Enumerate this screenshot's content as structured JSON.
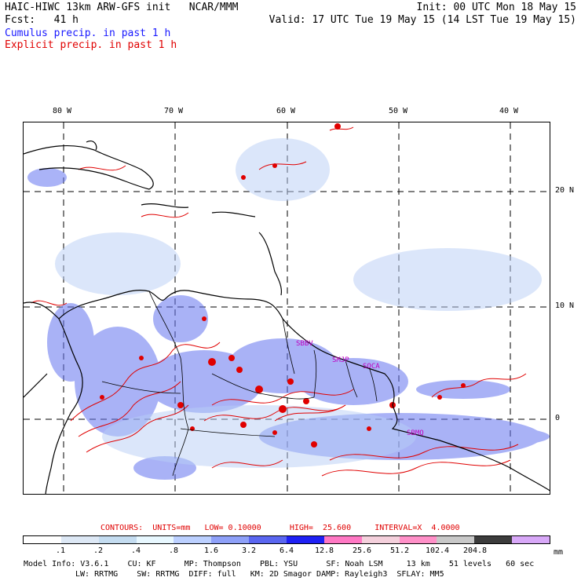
{
  "header": {
    "line1_left": "HAIC-HIWC 13km ARW-GFS init   NCAR/MMM",
    "line1_right": "Init: 00 UTC Mon 18 May 15",
    "line2_left": "Fcst:   41 h",
    "line2_right": "Valid: 17 UTC Tue 19 May 15 (14 LST Tue 19 May 15)",
    "line3": "Cumulus precip. in past 1 h",
    "line4": "Explicit precip. in past 1 h"
  },
  "map": {
    "longitude_labels": [
      "80 W",
      "70 W",
      "60 W",
      "50 W",
      "40 W"
    ],
    "latitude_labels": [
      "20 N",
      "10 N",
      "0"
    ],
    "station_labels": [
      "SBBV",
      "SMJP",
      "SOCA",
      "SBMQ"
    ],
    "colors": {
      "land": "#000000",
      "grid": "#000000",
      "cumulus": "#4a5ae8",
      "explicit": "#e00000",
      "station": "#c000c0"
    }
  },
  "contours_info": {
    "text": "CONTOURS:  UNITS=mm   LOW= 0.10000      HIGH=  25.600     INTERVAL=X  4.0000"
  },
  "colorbar": {
    "colors": [
      "#ffffff",
      "#dde8f5",
      "#c4dcf0",
      "#e8f8ff",
      "#bcd0ff",
      "#8ea0f8",
      "#5a66f0",
      "#1e20f4",
      "#ff78c4",
      "#f4d0dc",
      "#ff90c8",
      "#c8c8c8",
      "#3c3c3c",
      "#d8a8f8"
    ],
    "labels": [
      ".1",
      ".2",
      ".4",
      ".8",
      "1.6",
      "3.2",
      "6.4",
      "12.8",
      "25.6",
      "51.2",
      "102.4",
      "204.8"
    ],
    "unit": "mm"
  },
  "footer": {
    "line1": "Model Info: V3.6.1    CU: KF      MP: Thompson    PBL: YSU      SF: Noah LSM     13 km    51 levels   60 sec",
    "line2": "LW: RRTMG    SW: RRTMG  DIFF: full   KM: 2D Smagor DAMP: Rayleigh3  SFLAY: MM5"
  }
}
